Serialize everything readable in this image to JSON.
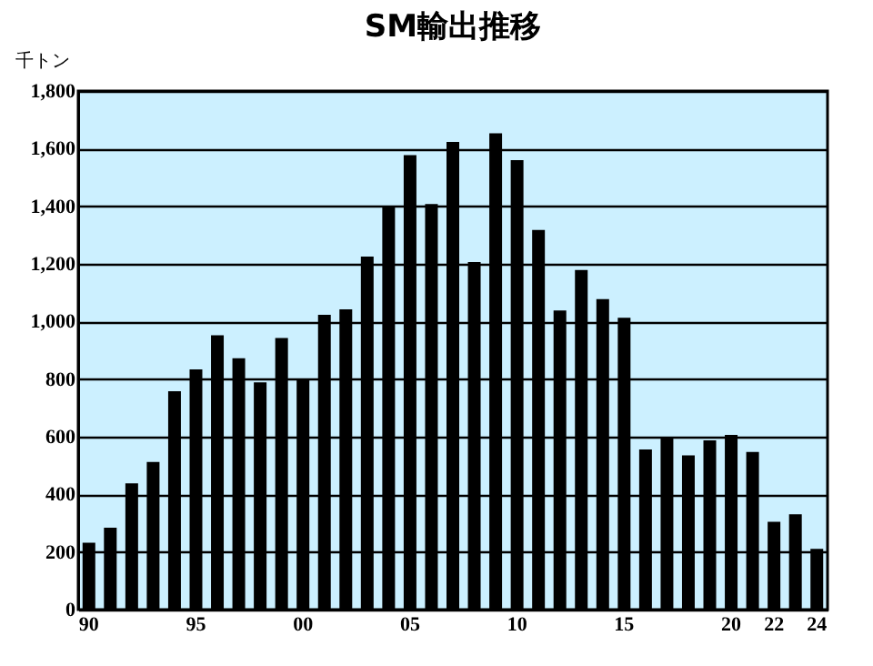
{
  "chart_data": {
    "type": "bar",
    "title": "SM輸出推移",
    "ylabel": "千トン",
    "categories": [
      "90",
      null,
      null,
      null,
      null,
      "95",
      null,
      null,
      null,
      null,
      "00",
      null,
      null,
      null,
      null,
      "05",
      null,
      null,
      null,
      null,
      "10",
      null,
      null,
      null,
      null,
      "15",
      null,
      null,
      null,
      null,
      "20",
      null,
      "22",
      null,
      "24"
    ],
    "values": [
      232,
      284,
      438,
      512,
      758,
      834,
      952,
      872,
      789,
      943,
      802,
      1023,
      1042,
      1225,
      1396,
      1577,
      1408,
      1623,
      1206,
      1653,
      1560,
      1318,
      1038,
      1179,
      1078,
      1013,
      556,
      598,
      535,
      587,
      606,
      547,
      305,
      331,
      211
    ],
    "color": "#000000",
    "ylim": [
      0,
      1800
    ],
    "yticks": [
      0,
      200,
      400,
      600,
      800,
      {
        "value": 1000,
        "label": "1,000"
      },
      {
        "value": 1200,
        "label": "1,200"
      },
      {
        "value": 1400,
        "label": "1,400"
      },
      {
        "value": 1600,
        "label": "1,600"
      },
      {
        "value": 1800,
        "label": "1,800"
      }
    ],
    "grid": "y"
  }
}
